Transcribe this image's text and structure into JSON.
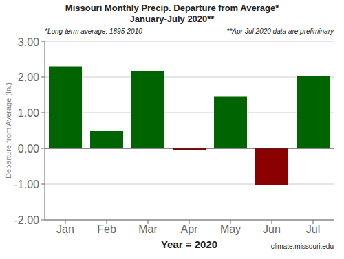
{
  "chart_data": {
    "type": "bar",
    "title": "Missouri Monthly Precip. Departure from Average*",
    "subtitle": "January-July 2020**",
    "categories": [
      "Jan",
      "Feb",
      "Mar",
      "Apr",
      "May",
      "Jun",
      "Jul"
    ],
    "values": [
      2.3,
      0.48,
      2.17,
      -0.05,
      1.45,
      -1.03,
      2.02
    ],
    "colors": [
      "#006400",
      "#006400",
      "#006400",
      "#8B0000",
      "#006400",
      "#8B0000",
      "#006400"
    ],
    "ylabel": "Departure from Average (In.)",
    "xlabel": "Year = 2020",
    "annotations": [
      "*Long-term average: 1895-2010",
      "**Apr-Jul 2020 data are preliminary",
      "climate.missouri.edu"
    ],
    "ylim": [
      -2.0,
      3.0
    ],
    "yticks": [
      {
        "value": -2,
        "label": "-2.00"
      },
      {
        "value": -1,
        "label": "-1.00"
      },
      {
        "value": 0,
        "label": "0.00"
      },
      {
        "value": 1,
        "label": "1.00"
      },
      {
        "value": 2,
        "label": "2.00"
      },
      {
        "value": 3,
        "label": "3.00"
      }
    ],
    "grid": true
  }
}
